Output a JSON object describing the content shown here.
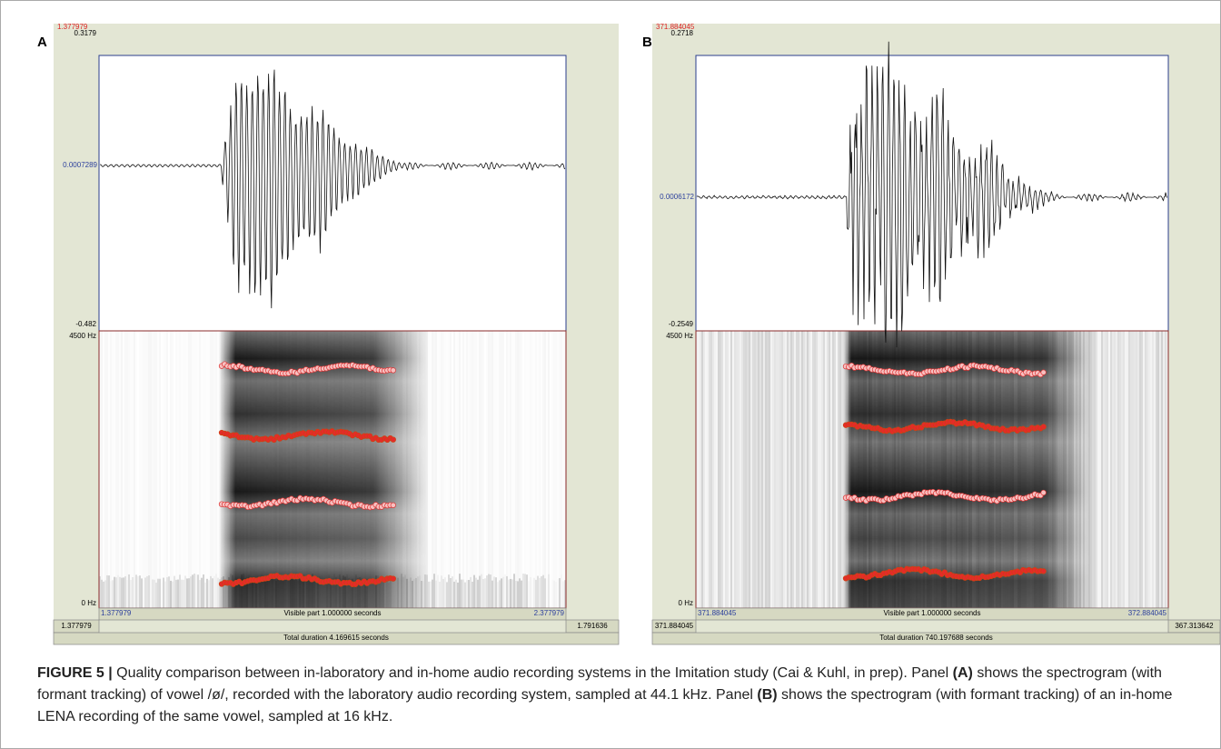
{
  "panel_a": {
    "label": "A",
    "start_time": 1.377979,
    "y_max": 0.3179,
    "y_zero": 0.0007289,
    "y_min": -0.482,
    "freq_max": "4500 Hz",
    "freq_min": "0 Hz",
    "visible_start": 1.377979,
    "visible_text": "Visible part 1.000000 seconds",
    "visible_end": 2.377979,
    "left_time": 1.377979,
    "right_time": 1.791636,
    "total": "Total duration 4.169615 seconds"
  },
  "panel_b": {
    "label": "B",
    "start_time": 371.884045,
    "y_max": 0.2718,
    "y_zero": 0.0006172,
    "y_min": -0.2549,
    "freq_max": "4500 Hz",
    "freq_min": "0 Hz",
    "visible_start": 371.884045,
    "visible_text": "Visible part 1.000000 seconds",
    "visible_end": 372.884045,
    "left_time": 371.884045,
    "right_time": 367.313642,
    "total": "Total duration 740.197688 seconds"
  },
  "caption": {
    "parts": [
      "FIGURE 5 |",
      "Quality comparison between in-laboratory and in-home audio recording systems in the Imitation study (Cai & Kuhl, in prep). Panel",
      "(A)",
      "shows the spectrogram (with formant tracking) of vowel /ø/, recorded with the laboratory audio recording system, sampled at 44.1 kHz. Panel",
      "(B)",
      "shows the spectrogram (with formant tracking) of an in-home LENA recording of the same vowel, sampled at 16 kHz."
    ]
  }
}
